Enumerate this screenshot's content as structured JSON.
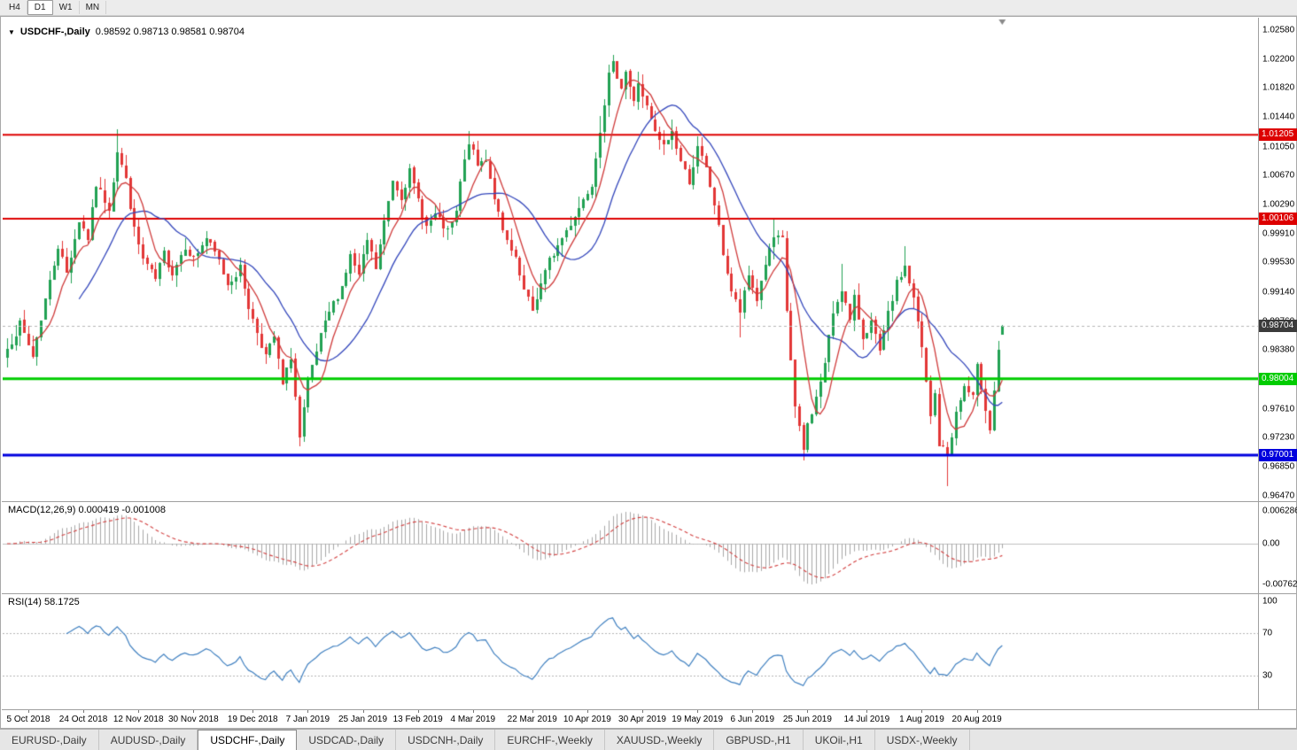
{
  "toolbar": {
    "timeframes": [
      {
        "label": "H4",
        "active": false
      },
      {
        "label": "D1",
        "active": true
      },
      {
        "label": "W1",
        "active": false
      },
      {
        "label": "MN",
        "active": false
      }
    ]
  },
  "chart_header": {
    "dropdown_icon": "▼",
    "symbol": "USDCHF-,Daily",
    "ohlc_text": "0.98592 0.98713 0.98581 0.98704"
  },
  "indicators": {
    "macd": {
      "title": "MACD(12,26,9) 0.000419 -0.001008",
      "axis_labels": [
        {
          "value": 0.006286,
          "text": "0.006286"
        },
        {
          "value": 0,
          "text": "0.00"
        },
        {
          "value": -0.00762,
          "text": "-0.00762"
        }
      ]
    },
    "rsi": {
      "title": "RSI(14) 58.1725",
      "axis_labels": [
        {
          "value": 100,
          "text": "100"
        },
        {
          "value": 70,
          "text": "70"
        },
        {
          "value": 30,
          "text": "30"
        }
      ],
      "levels": [
        70,
        30
      ]
    }
  },
  "price_axis": {
    "labels": [
      "1.02580",
      "1.02200",
      "1.01820",
      "1.01440",
      "1.01050",
      "1.00670",
      "1.00290",
      "0.99910",
      "0.99530",
      "0.99140",
      "0.98760",
      "0.98380",
      "0.97610",
      "0.97230",
      "0.96850",
      "0.96470"
    ]
  },
  "price_lines": [
    {
      "value": 1.01205,
      "label": "1.01205",
      "color": "#dd0000",
      "width": 2
    },
    {
      "value": 1.00106,
      "label": "1.00106",
      "color": "#dd0000",
      "width": 2
    },
    {
      "value": 0.98004,
      "label": "0.98004",
      "color": "#00cc00",
      "width": 3
    },
    {
      "value": 0.97001,
      "label": "0.97001",
      "color": "#0000dd",
      "width": 3
    }
  ],
  "current_price": {
    "value": 0.98704,
    "label": "0.98704",
    "box_color": "#3b3b3b"
  },
  "date_axis": [
    {
      "index": 5,
      "label": "5 Oct 2018"
    },
    {
      "index": 18,
      "label": "24 Oct 2018"
    },
    {
      "index": 31,
      "label": "12 Nov 2018"
    },
    {
      "index": 44,
      "label": "30 Nov 2018"
    },
    {
      "index": 58,
      "label": "19 Dec 2018"
    },
    {
      "index": 71,
      "label": "7 Jan 2019"
    },
    {
      "index": 84,
      "label": "25 Jan 2019"
    },
    {
      "index": 97,
      "label": "13 Feb 2019"
    },
    {
      "index": 110,
      "label": "4 Mar 2019"
    },
    {
      "index": 124,
      "label": "22 Mar 2019"
    },
    {
      "index": 137,
      "label": "10 Apr 2019"
    },
    {
      "index": 150,
      "label": "30 Apr 2019"
    },
    {
      "index": 163,
      "label": "19 May 2019"
    },
    {
      "index": 176,
      "label": "6 Jun 2019"
    },
    {
      "index": 189,
      "label": "25 Jun 2019"
    },
    {
      "index": 203,
      "label": "14 Jul 2019"
    },
    {
      "index": 216,
      "label": "1 Aug 2019"
    },
    {
      "index": 229,
      "label": "20 Aug 2019"
    }
  ],
  "tabs": [
    {
      "label": "EURUSD-,Daily",
      "active": false
    },
    {
      "label": "AUDUSD-,Daily",
      "active": false
    },
    {
      "label": "USDCHF-,Daily",
      "active": true
    },
    {
      "label": "USDCAD-,Daily",
      "active": false
    },
    {
      "label": "USDCNH-,Daily",
      "active": false
    },
    {
      "label": "EURCHF-,Weekly",
      "active": false
    },
    {
      "label": "XAUUSD-,Weekly",
      "active": false
    },
    {
      "label": "GBPUSD-,H1",
      "active": false
    },
    {
      "label": "UKOil-,H1",
      "active": false
    },
    {
      "label": "USDX-,Weekly",
      "active": false
    }
  ],
  "colors": {
    "bull": "#21a153",
    "bear": "#e23636",
    "ma_fast": "#cf3a3a",
    "ma_slow": "#3346bb",
    "macd_hist": "#a6a6a6",
    "macd_signal": "#d23f3f",
    "rsi_line": "#4080c0",
    "current_line": "#b4b4b4",
    "level_dash": "#b4b4b4"
  },
  "chart_data": {
    "type": "candlestick",
    "symbol": "USDCHF",
    "timeframe": "Daily",
    "title": "USDCHF-,Daily",
    "visible_price_range": {
      "min": 0.96398,
      "max": 1.02743
    },
    "last_candle": {
      "open": 0.98592,
      "high": 0.98713,
      "low": 0.98581,
      "close": 0.98704
    },
    "candles_count": 236,
    "price_path": [
      [
        0,
        0.984
      ],
      [
        3,
        0.9872
      ],
      [
        6,
        0.983
      ],
      [
        9,
        0.9905
      ],
      [
        12,
        0.9975
      ],
      [
        14,
        0.994
      ],
      [
        17,
        1.0008
      ],
      [
        19,
        0.9985
      ],
      [
        21,
        1.0055
      ],
      [
        24,
        1.0025
      ],
      [
        26,
        1.01
      ],
      [
        28,
        1.0062
      ],
      [
        30,
        0.9995
      ],
      [
        32,
        0.9958
      ],
      [
        35,
        0.993
      ],
      [
        37,
        0.9965
      ],
      [
        39,
        0.994
      ],
      [
        42,
        0.9975
      ],
      [
        44,
        0.9958
      ],
      [
        47,
        0.9985
      ],
      [
        50,
        0.9955
      ],
      [
        52,
        0.9925
      ],
      [
        55,
        0.9945
      ],
      [
        57,
        0.9895
      ],
      [
        59,
        0.9862
      ],
      [
        61,
        0.983
      ],
      [
        63,
        0.9855
      ],
      [
        65,
        0.9792
      ],
      [
        67,
        0.983
      ],
      [
        69,
        0.9722
      ],
      [
        71,
        0.9795
      ],
      [
        74,
        0.9855
      ],
      [
        76,
        0.9888
      ],
      [
        79,
        0.9922
      ],
      [
        81,
        0.9962
      ],
      [
        83,
        0.9935
      ],
      [
        85,
        0.9982
      ],
      [
        87,
        0.9945
      ],
      [
        89,
        1.0005
      ],
      [
        91,
        1.0062
      ],
      [
        93,
        1.004
      ],
      [
        95,
        1.0072
      ],
      [
        97,
        1.0035
      ],
      [
        99,
        1.0
      ],
      [
        101,
        1.0015
      ],
      [
        104,
        0.9992
      ],
      [
        106,
        1.0018
      ],
      [
        107,
        1.0058
      ],
      [
        109,
        1.0112
      ],
      [
        111,
        1.008
      ],
      [
        113,
        1.009
      ],
      [
        115,
        1.004
      ],
      [
        117,
        0.9992
      ],
      [
        120,
        0.9955
      ],
      [
        122,
        0.9915
      ],
      [
        124,
        0.989
      ],
      [
        126,
        0.9925
      ],
      [
        128,
        0.9955
      ],
      [
        131,
        0.9985
      ],
      [
        133,
        1.0005
      ],
      [
        135,
        1.0025
      ],
      [
        138,
        1.0058
      ],
      [
        140,
        1.0128
      ],
      [
        142,
        1.0198
      ],
      [
        143,
        1.0212
      ],
      [
        145,
        1.0185
      ],
      [
        146,
        1.0205
      ],
      [
        148,
        1.0162
      ],
      [
        149,
        1.019
      ],
      [
        151,
        1.0155
      ],
      [
        153,
        1.0122
      ],
      [
        155,
        1.0105
      ],
      [
        157,
        1.0125
      ],
      [
        159,
        1.0085
      ],
      [
        161,
        1.006
      ],
      [
        163,
        1.0102
      ],
      [
        165,
        1.0075
      ],
      [
        167,
        1.003
      ],
      [
        169,
        0.9965
      ],
      [
        171,
        0.9915
      ],
      [
        173,
        0.9888
      ],
      [
        175,
        0.9935
      ],
      [
        177,
        0.9905
      ],
      [
        179,
        0.9952
      ],
      [
        181,
        0.9985
      ],
      [
        183,
        0.9982
      ],
      [
        184,
        0.989
      ],
      [
        186,
        0.9762
      ],
      [
        188,
        0.9706
      ],
      [
        189,
        0.974
      ],
      [
        191,
        0.9775
      ],
      [
        193,
        0.982
      ],
      [
        195,
        0.9888
      ],
      [
        197,
        0.992
      ],
      [
        199,
        0.9875
      ],
      [
        200,
        0.9905
      ],
      [
        202,
        0.9855
      ],
      [
        204,
        0.9875
      ],
      [
        206,
        0.9835
      ],
      [
        208,
        0.9885
      ],
      [
        210,
        0.9925
      ],
      [
        212,
        0.9948
      ],
      [
        214,
        0.9905
      ],
      [
        216,
        0.984
      ],
      [
        218,
        0.975
      ],
      [
        219,
        0.978
      ],
      [
        220,
        0.9715
      ],
      [
        222,
        0.97
      ],
      [
        224,
        0.9755
      ],
      [
        226,
        0.979
      ],
      [
        228,
        0.9775
      ],
      [
        229,
        0.9815
      ],
      [
        230,
        0.979
      ],
      [
        232,
        0.9735
      ],
      [
        233,
        0.9785
      ],
      [
        234,
        0.984
      ],
      [
        235,
        0.98704
      ]
    ],
    "spikes": [
      {
        "index": 26,
        "high": 1.0128
      },
      {
        "index": 69,
        "low": 0.9712
      },
      {
        "index": 109,
        "high": 1.0126
      },
      {
        "index": 140,
        "high": 1.0145
      },
      {
        "index": 143,
        "high": 1.0226
      },
      {
        "index": 163,
        "high": 1.0108
      },
      {
        "index": 173,
        "low": 0.9855
      },
      {
        "index": 181,
        "high": 1.0011
      },
      {
        "index": 188,
        "low": 0.9693
      },
      {
        "index": 197,
        "high": 0.9951
      },
      {
        "index": 212,
        "high": 0.9975
      },
      {
        "index": 222,
        "low": 0.9659
      },
      {
        "index": 232,
        "low": 0.9728
      }
    ],
    "ma_fast_period": 7,
    "ma_slow_period": 18,
    "macd": {
      "fast": 12,
      "slow": 26,
      "signal": 9
    },
    "rsi": {
      "period": 14,
      "last": 58.1725
    }
  }
}
